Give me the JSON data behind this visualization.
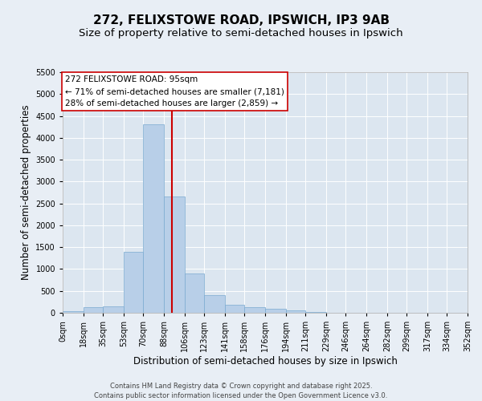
{
  "title_line1": "272, FELIXSTOWE ROAD, IPSWICH, IP3 9AB",
  "title_line2": "Size of property relative to semi-detached houses in Ipswich",
  "xlabel": "Distribution of semi-detached houses by size in Ipswich",
  "ylabel": "Number of semi-detached properties",
  "annotation_title": "272 FELIXSTOWE ROAD: 95sqm",
  "annotation_smaller": "← 71% of semi-detached houses are smaller (7,181)",
  "annotation_larger": "28% of semi-detached houses are larger (2,859) →",
  "property_size": 95,
  "bin_edges": [
    0,
    18,
    35,
    53,
    70,
    88,
    106,
    123,
    141,
    158,
    176,
    194,
    211,
    229,
    246,
    264,
    282,
    299,
    317,
    334,
    352
  ],
  "bar_heights": [
    30,
    130,
    150,
    1400,
    4300,
    2650,
    900,
    400,
    175,
    120,
    90,
    50,
    10,
    5,
    2,
    1,
    0,
    0,
    0,
    0
  ],
  "bar_color": "#b8cfe8",
  "bar_edge_color": "#7aaad0",
  "vline_color": "#cc0000",
  "background_color": "#e8eef5",
  "plot_bg_color": "#dce6f0",
  "annotation_box_color": "#ffffff",
  "annotation_box_edge": "#cc0000",
  "ylim_max": 5500,
  "yticks": [
    0,
    500,
    1000,
    1500,
    2000,
    2500,
    3000,
    3500,
    4000,
    4500,
    5000,
    5500
  ],
  "footer": "Contains HM Land Registry data © Crown copyright and database right 2025.\nContains public sector information licensed under the Open Government Licence v3.0.",
  "title_fontsize": 11,
  "subtitle_fontsize": 9.5,
  "axis_label_fontsize": 8.5,
  "tick_fontsize": 7,
  "annotation_fontsize": 7.5,
  "footer_fontsize": 6
}
